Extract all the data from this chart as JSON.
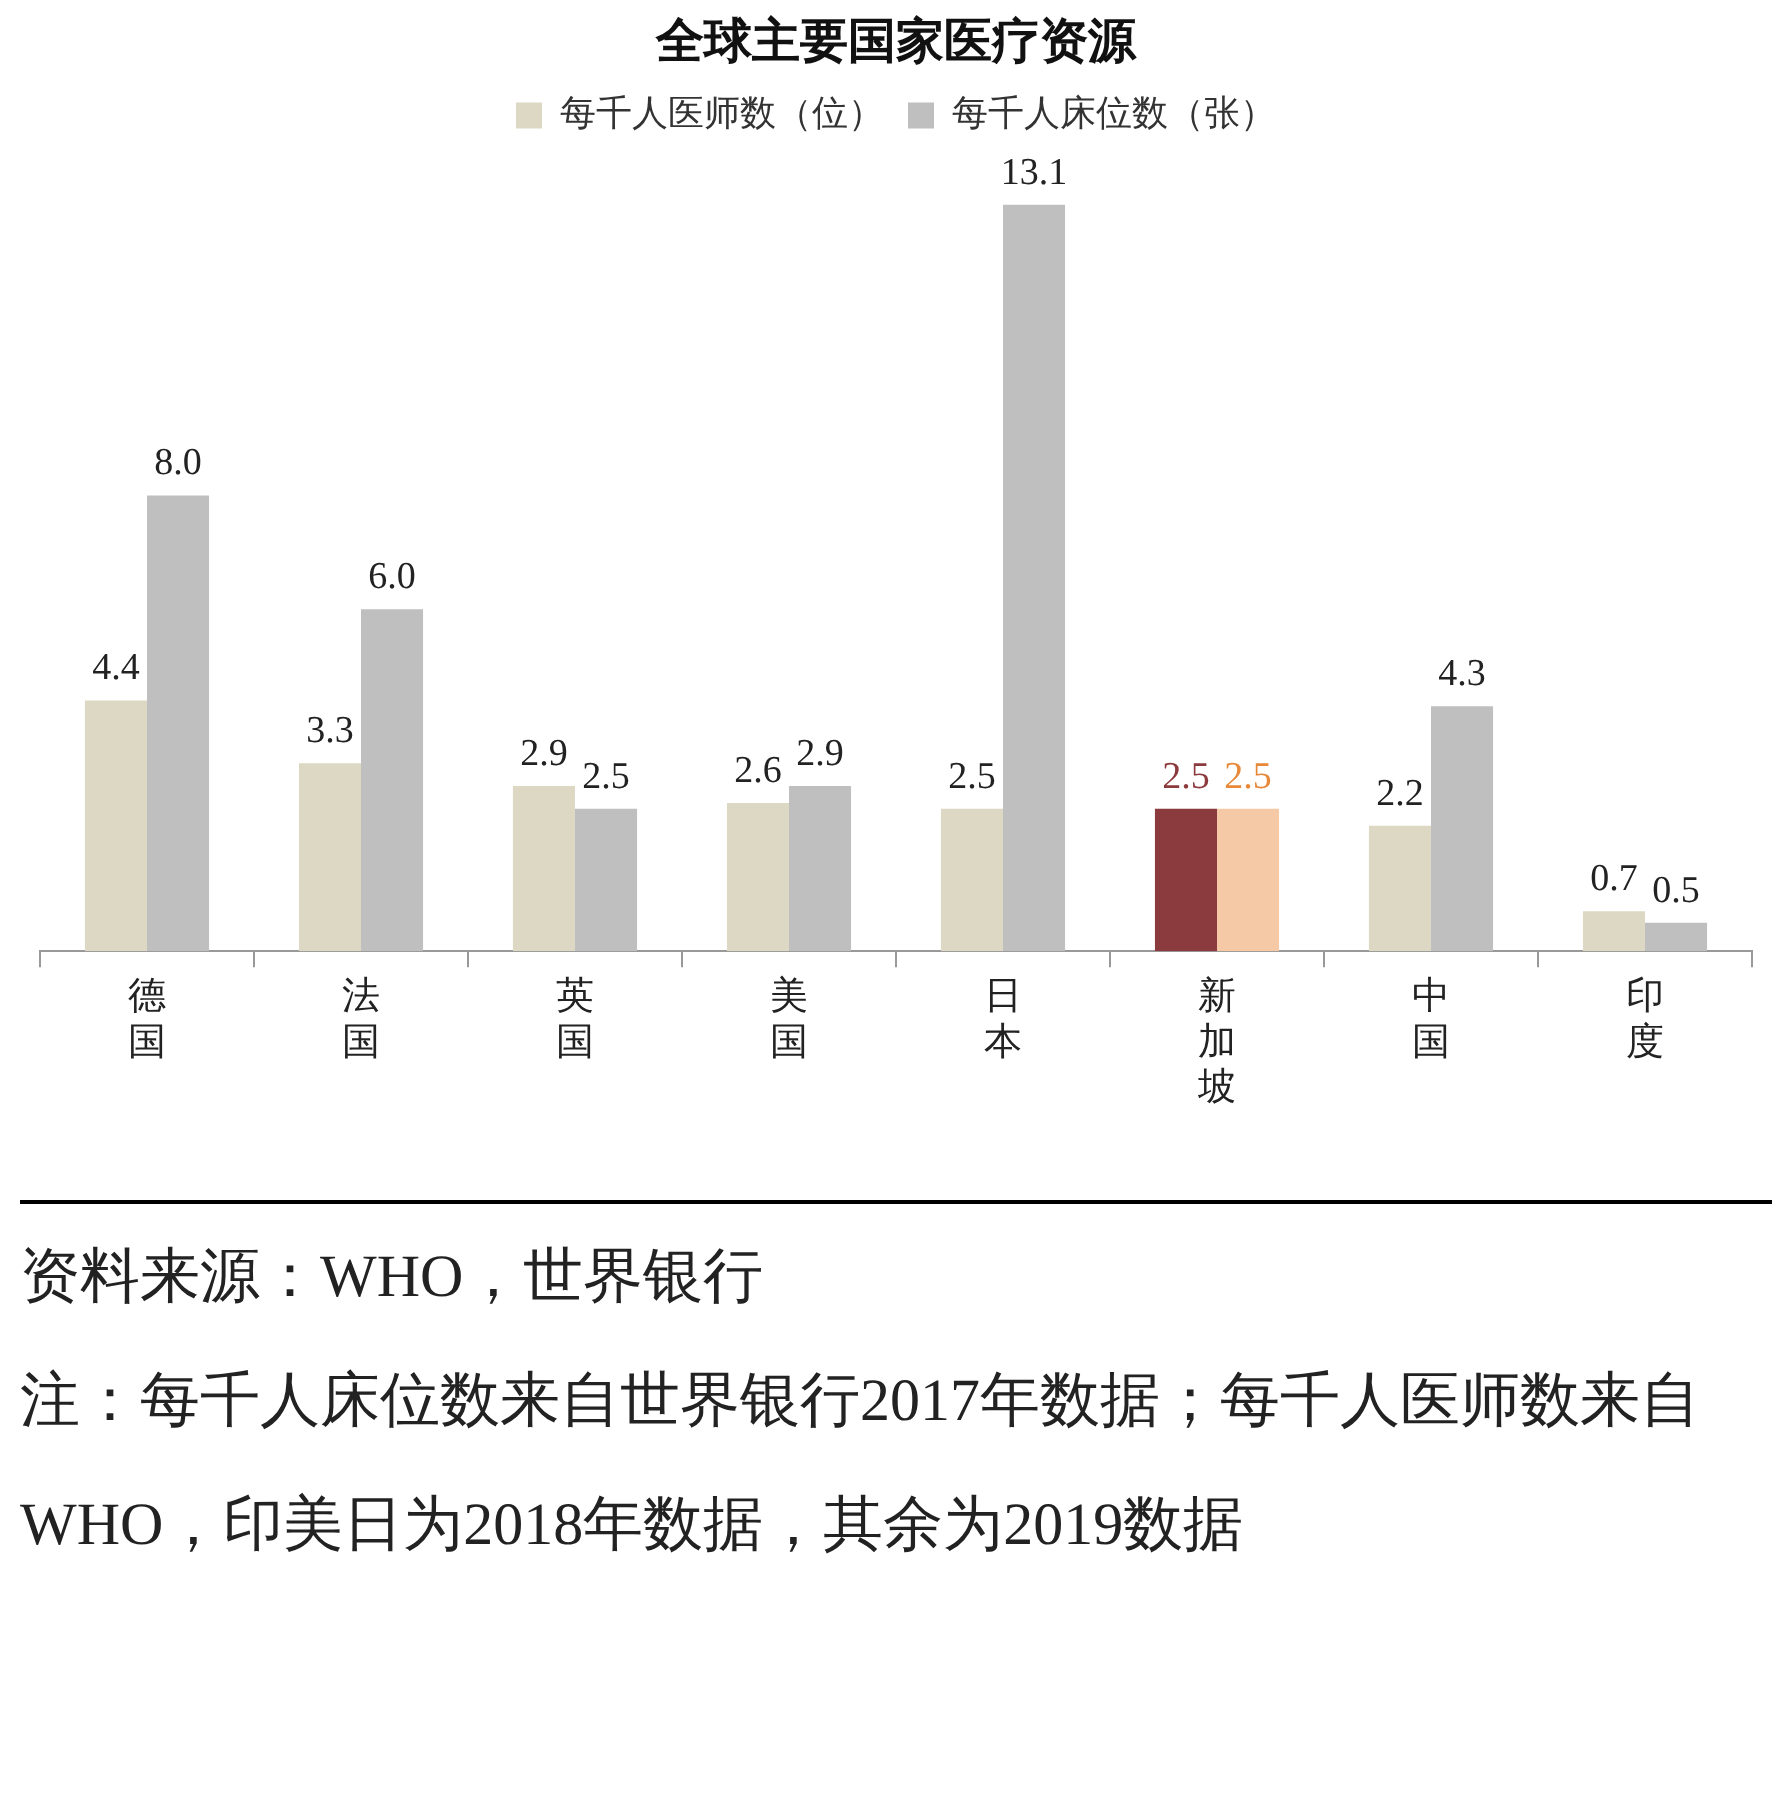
{
  "chart_data": {
    "type": "bar",
    "title": "全球主要国家医疗资源",
    "categories": [
      "德国",
      "法国",
      "英国",
      "美国",
      "日本",
      "新加坡",
      "中国",
      "印度"
    ],
    "series": [
      {
        "name": "每千人医师数（位）",
        "color": "#ddd8c3",
        "colors": [
          "#ddd8c3",
          "#ddd8c3",
          "#ddd8c3",
          "#ddd8c3",
          "#ddd8c3",
          "#8b3a3d",
          "#ddd8c3",
          "#ddd8c3"
        ],
        "values": [
          4.4,
          3.3,
          2.9,
          2.6,
          2.5,
          2.5,
          2.2,
          0.7
        ],
        "value_labels": [
          "4.4",
          "3.3",
          "2.9",
          "2.6",
          "2.5",
          "2.5",
          "2.2",
          "0.7"
        ]
      },
      {
        "name": "每千人床位数（张）",
        "color": "#bfbfbf",
        "colors": [
          "#bfbfbf",
          "#bfbfbf",
          "#bfbfbf",
          "#bfbfbf",
          "#bfbfbf",
          "#f5c9a5",
          "#bfbfbf",
          "#bfbfbf"
        ],
        "values": [
          8.0,
          6.0,
          2.5,
          2.9,
          13.1,
          2.5,
          4.3,
          0.5
        ],
        "value_labels": [
          "8.0",
          "6.0",
          "2.5",
          "2.9",
          "13.1",
          "2.5",
          "4.3",
          "0.5"
        ]
      }
    ],
    "legend": "top",
    "grid": false,
    "annotations": [
      "资料来源：WHO，世界银行",
      "注：每千人床位数来自世界银行2017年数据；每千人医师数来自WHO，印美日为2018年数据，其余为2019数据"
    ]
  }
}
